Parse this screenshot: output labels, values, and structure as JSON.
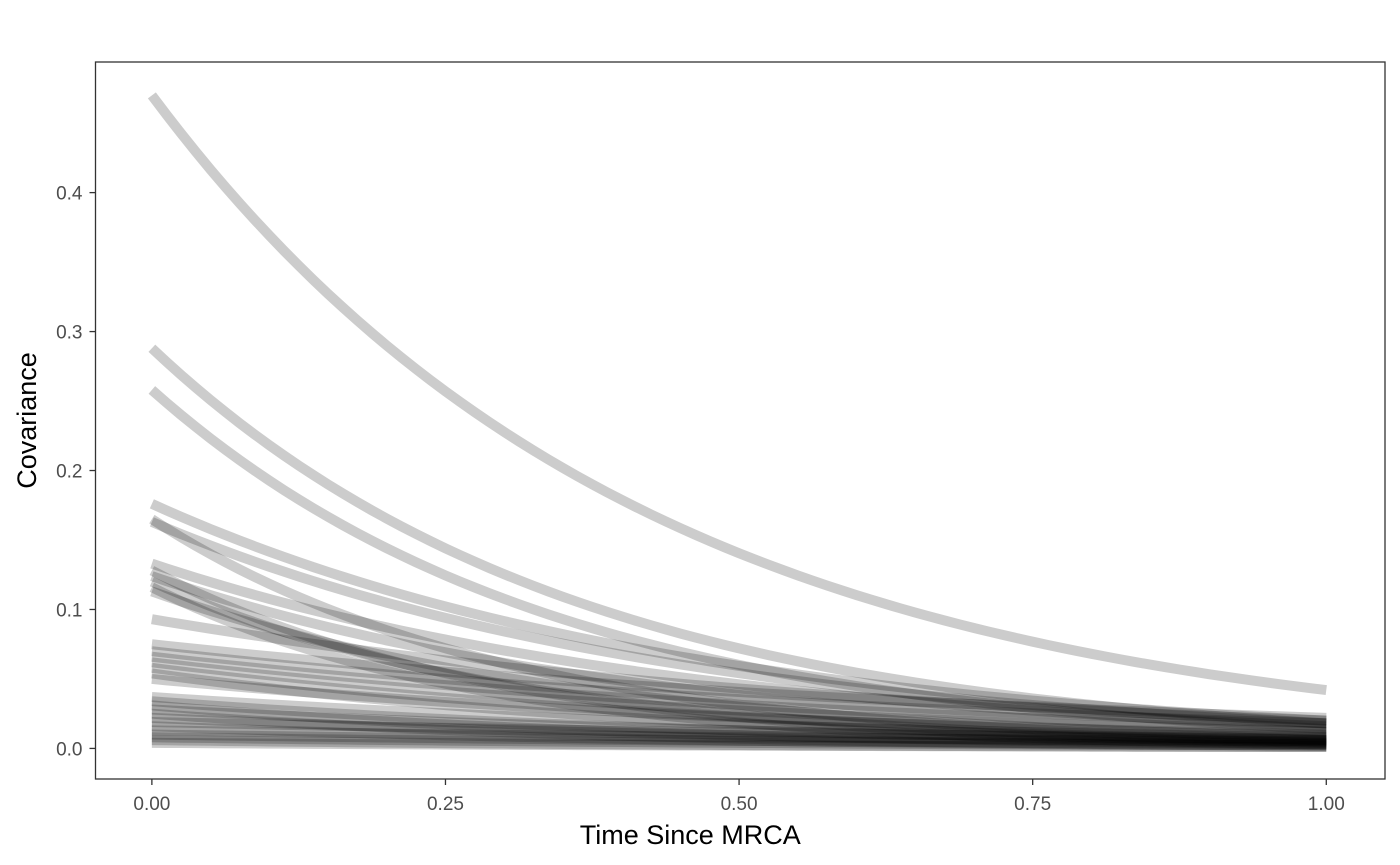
{
  "chart_data": {
    "type": "line",
    "title": "",
    "xlabel": "Time Since MRCA",
    "ylabel": "Covariance",
    "xlim": [
      -0.048,
      1.05
    ],
    "ylim": [
      -0.022,
      0.494
    ],
    "x_ticks": [
      0,
      0.25,
      0.5,
      0.75,
      1
    ],
    "x_tick_labels": [
      "0.00",
      "0.25",
      "0.50",
      "0.75",
      "1.00"
    ],
    "y_ticks": [
      0,
      0.1,
      0.2,
      0.3,
      0.4
    ],
    "y_tick_labels": [
      "0.0",
      "0.1",
      "0.2",
      "0.3",
      "0.4"
    ],
    "grid": false,
    "legend": "none",
    "line_color": "#000000",
    "line_opacity": 0.2,
    "curve_form": "y = y0 * exp(-k * x)",
    "series": [
      {
        "y0": 0.47,
        "y1": 0.042
      },
      {
        "y0": 0.288,
        "y1": 0.018
      },
      {
        "y0": 0.258,
        "y1": 0.014
      },
      {
        "y0": 0.176,
        "y1": 0.02
      },
      {
        "y0": 0.165,
        "y1": 0.006
      },
      {
        "y0": 0.163,
        "y1": 0.018
      },
      {
        "y0": 0.133,
        "y1": 0.016
      },
      {
        "y0": 0.128,
        "y1": 0.004
      },
      {
        "y0": 0.124,
        "y1": 0.012
      },
      {
        "y0": 0.12,
        "y1": 0.005
      },
      {
        "y0": 0.116,
        "y1": 0.003
      },
      {
        "y0": 0.113,
        "y1": 0.008
      },
      {
        "y0": 0.093,
        "y1": 0.02
      },
      {
        "y0": 0.075,
        "y1": 0.022
      },
      {
        "y0": 0.07,
        "y1": 0.018
      },
      {
        "y0": 0.066,
        "y1": 0.015
      },
      {
        "y0": 0.062,
        "y1": 0.012
      },
      {
        "y0": 0.058,
        "y1": 0.009
      },
      {
        "y0": 0.054,
        "y1": 0.006
      },
      {
        "y0": 0.05,
        "y1": 0.01
      },
      {
        "y0": 0.037,
        "y1": 0.008
      },
      {
        "y0": 0.034,
        "y1": 0.005
      },
      {
        "y0": 0.031,
        "y1": 0.003
      },
      {
        "y0": 0.028,
        "y1": 0.006
      },
      {
        "y0": 0.025,
        "y1": 0.002
      },
      {
        "y0": 0.022,
        "y1": 0.004
      },
      {
        "y0": 0.019,
        "y1": 0.007
      },
      {
        "y0": 0.016,
        "y1": 0.002
      },
      {
        "y0": 0.013,
        "y1": 0.005
      },
      {
        "y0": 0.01,
        "y1": 0.003
      },
      {
        "y0": 0.008,
        "y1": 0.002
      },
      {
        "y0": 0.006,
        "y1": 0.001
      },
      {
        "y0": 0.004,
        "y1": 0.001
      }
    ]
  }
}
